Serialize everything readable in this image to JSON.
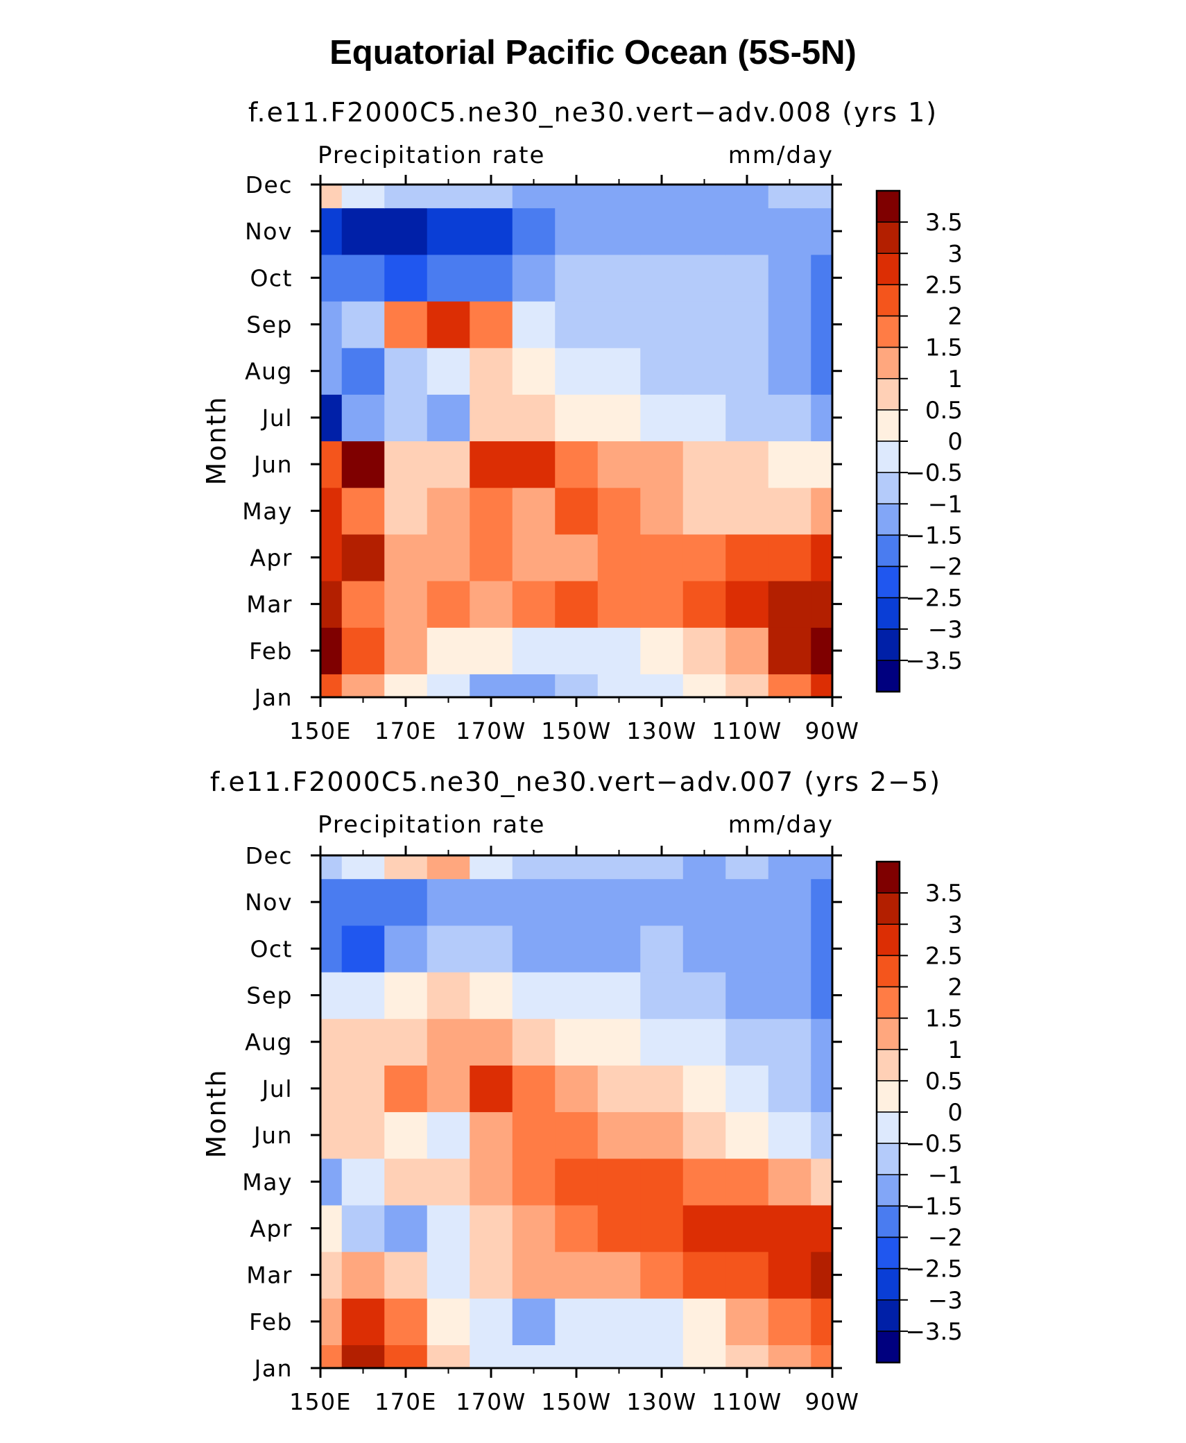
{
  "figure_title": "Equatorial Pacific Ocean (5S-5N)",
  "chart_data": [
    {
      "type": "heatmap",
      "title": "f.e11.F2000C5.ne30_ne30.vert−adv.008 (yrs 1)",
      "left_label": "Precipitation rate",
      "units": "mm/day",
      "xlabel": "",
      "ylabel": "Month",
      "x_ticks": [
        "150E",
        "170E",
        "170W",
        "150W",
        "130W",
        "110W",
        "90W"
      ],
      "x_tick_lon": [
        150,
        170,
        190,
        210,
        230,
        250,
        270
      ],
      "xlim": [
        150,
        270
      ],
      "y_ticks": [
        "Jan",
        "Feb",
        "Mar",
        "Apr",
        "May",
        "Jun",
        "Jul",
        "Aug",
        "Sep",
        "Oct",
        "Nov",
        "Dec"
      ],
      "ylim": [
        1,
        12
      ],
      "colorbar_levels": [
        -3.5,
        -3,
        -2.5,
        -2,
        -1.5,
        -1,
        -0.5,
        0,
        0.5,
        1,
        1.5,
        2,
        2.5,
        3,
        3.5
      ],
      "colorbar_labels": [
        "3.5",
        "3",
        "2.5",
        "2",
        "1.5",
        "1",
        "0.5",
        "0",
        "−0.5",
        "−1",
        "−1.5",
        "−2",
        "−2.5",
        "−3",
        "−3.5"
      ],
      "grid_lon": [
        150,
        160,
        170,
        180,
        190,
        200,
        210,
        220,
        230,
        240,
        250,
        260,
        270
      ],
      "grid_month": [
        "Jan",
        "Feb",
        "Mar",
        "Apr",
        "May",
        "Jun",
        "Jul",
        "Aug",
        "Sep",
        "Oct",
        "Nov",
        "Dec"
      ],
      "values": [
        [
          2.0,
          1.0,
          0.0,
          -0.5,
          -1.5,
          -1.5,
          -1.0,
          -0.5,
          -0.5,
          0.0,
          0.5,
          1.5,
          2.5
        ],
        [
          4.0,
          2.0,
          1.0,
          0.0,
          0.0,
          -0.5,
          -0.5,
          -0.5,
          0.0,
          0.5,
          1.0,
          3.0,
          4.0
        ],
        [
          3.0,
          1.5,
          1.0,
          1.5,
          1.0,
          1.5,
          2.0,
          1.5,
          1.5,
          2.0,
          2.5,
          3.0,
          3.0
        ],
        [
          2.5,
          3.0,
          1.0,
          1.0,
          1.5,
          1.0,
          1.0,
          1.5,
          1.5,
          1.5,
          2.0,
          2.0,
          2.5
        ],
        [
          2.5,
          1.5,
          0.5,
          1.0,
          1.5,
          1.0,
          2.0,
          1.5,
          1.0,
          0.5,
          0.5,
          0.5,
          1.0
        ],
        [
          2.0,
          4.0,
          0.5,
          0.5,
          2.5,
          2.5,
          1.5,
          1.0,
          1.0,
          0.5,
          0.5,
          0.0,
          0.0
        ],
        [
          -3.5,
          -1.5,
          -1.0,
          -1.5,
          0.5,
          0.5,
          0.0,
          0.0,
          -0.5,
          -0.5,
          -1.0,
          -1.0,
          -1.5
        ],
        [
          -1.5,
          -2.0,
          -1.0,
          -0.5,
          0.5,
          0.0,
          -0.5,
          -0.5,
          -1.0,
          -1.0,
          -1.0,
          -1.5,
          -2.0
        ],
        [
          -1.5,
          -1.0,
          1.5,
          2.5,
          1.5,
          -0.5,
          -1.0,
          -1.0,
          -1.0,
          -1.0,
          -1.0,
          -1.5,
          -2.0
        ],
        [
          -2.0,
          -2.0,
          -2.5,
          -2.0,
          -2.0,
          -1.5,
          -1.0,
          -1.0,
          -1.0,
          -1.0,
          -1.0,
          -1.5,
          -2.0
        ],
        [
          -3.0,
          -3.5,
          -3.5,
          -3.0,
          -3.0,
          -2.0,
          -1.5,
          -1.5,
          -1.5,
          -1.5,
          -1.5,
          -1.5,
          -1.5
        ],
        [
          0.5,
          -0.5,
          -1.0,
          -1.0,
          -1.0,
          -1.5,
          -1.5,
          -1.5,
          -1.5,
          -1.5,
          -1.5,
          -1.0,
          -1.0
        ]
      ]
    },
    {
      "type": "heatmap",
      "title": "f.e11.F2000C5.ne30_ne30.vert−adv.007 (yrs 2−5)",
      "left_label": "Precipitation rate",
      "units": "mm/day",
      "xlabel": "",
      "ylabel": "Month",
      "x_ticks": [
        "150E",
        "170E",
        "170W",
        "150W",
        "130W",
        "110W",
        "90W"
      ],
      "x_tick_lon": [
        150,
        170,
        190,
        210,
        230,
        250,
        270
      ],
      "xlim": [
        150,
        270
      ],
      "y_ticks": [
        "Jan",
        "Feb",
        "Mar",
        "Apr",
        "May",
        "Jun",
        "Jul",
        "Aug",
        "Sep",
        "Oct",
        "Nov",
        "Dec"
      ],
      "ylim": [
        1,
        12
      ],
      "colorbar_levels": [
        -3.5,
        -3,
        -2.5,
        -2,
        -1.5,
        -1,
        -0.5,
        0,
        0.5,
        1,
        1.5,
        2,
        2.5,
        3,
        3.5
      ],
      "colorbar_labels": [
        "3.5",
        "3",
        "2.5",
        "2",
        "1.5",
        "1",
        "0.5",
        "0",
        "−0.5",
        "−1",
        "−1.5",
        "−2",
        "−2.5",
        "−3",
        "−3.5"
      ],
      "grid_lon": [
        150,
        160,
        170,
        180,
        190,
        200,
        210,
        220,
        230,
        240,
        250,
        260,
        270
      ],
      "grid_month": [
        "Jan",
        "Feb",
        "Mar",
        "Apr",
        "May",
        "Jun",
        "Jul",
        "Aug",
        "Sep",
        "Oct",
        "Nov",
        "Dec"
      ],
      "values": [
        [
          1.5,
          3.0,
          2.0,
          0.5,
          -0.5,
          -0.5,
          -0.5,
          -0.5,
          -0.5,
          0.0,
          0.5,
          1.0,
          1.5
        ],
        [
          1.0,
          2.5,
          1.5,
          0.0,
          -0.5,
          -1.5,
          -0.5,
          -0.5,
          -0.5,
          0.0,
          1.0,
          1.5,
          2.0
        ],
        [
          0.5,
          1.0,
          0.5,
          -0.5,
          0.5,
          1.0,
          1.0,
          1.0,
          1.5,
          2.0,
          2.0,
          2.5,
          3.0
        ],
        [
          0.0,
          -1.0,
          -1.5,
          -0.5,
          0.5,
          1.0,
          1.5,
          2.0,
          2.0,
          2.5,
          2.5,
          2.5,
          2.5
        ],
        [
          -1.5,
          -0.5,
          0.5,
          0.5,
          1.0,
          1.5,
          2.0,
          2.0,
          2.0,
          1.5,
          1.5,
          1.0,
          0.5
        ],
        [
          0.5,
          0.5,
          0.0,
          -0.5,
          1.0,
          1.5,
          1.5,
          1.0,
          1.0,
          0.5,
          0.0,
          -0.5,
          -1.0
        ],
        [
          0.5,
          0.5,
          1.5,
          1.0,
          2.5,
          1.5,
          1.0,
          0.5,
          0.5,
          0.0,
          -0.5,
          -1.0,
          -1.5
        ],
        [
          0.5,
          0.5,
          0.5,
          1.0,
          1.0,
          0.5,
          0.0,
          0.0,
          -0.5,
          -0.5,
          -1.0,
          -1.0,
          -1.5
        ],
        [
          -0.5,
          -0.5,
          0.0,
          0.5,
          0.0,
          -0.5,
          -0.5,
          -0.5,
          -1.0,
          -1.0,
          -1.5,
          -1.5,
          -2.0
        ],
        [
          -2.0,
          -2.5,
          -1.5,
          -1.0,
          -1.0,
          -1.5,
          -1.5,
          -1.5,
          -1.0,
          -1.5,
          -1.5,
          -1.5,
          -2.0
        ],
        [
          -2.0,
          -2.0,
          -2.0,
          -1.5,
          -1.5,
          -1.5,
          -1.5,
          -1.5,
          -1.5,
          -1.5,
          -1.5,
          -1.5,
          -2.0
        ],
        [
          -1.0,
          -0.5,
          0.5,
          1.0,
          -0.5,
          -1.0,
          -1.0,
          -1.0,
          -1.0,
          -1.5,
          -1.0,
          -1.5,
          -1.5
        ]
      ]
    }
  ],
  "colors": {
    "palette": [
      "#00007f",
      "#0020a8",
      "#0a3ed6",
      "#2057ef",
      "#4a7cf0",
      "#82a6f7",
      "#b4cbfa",
      "#dde9fd",
      "#fff0e0",
      "#ffd0b6",
      "#ffa77e",
      "#ff7c45",
      "#f4551c",
      "#dc2e04",
      "#b31f00",
      "#7f0000"
    ],
    "axis": "#000000",
    "background": "#ffffff"
  }
}
